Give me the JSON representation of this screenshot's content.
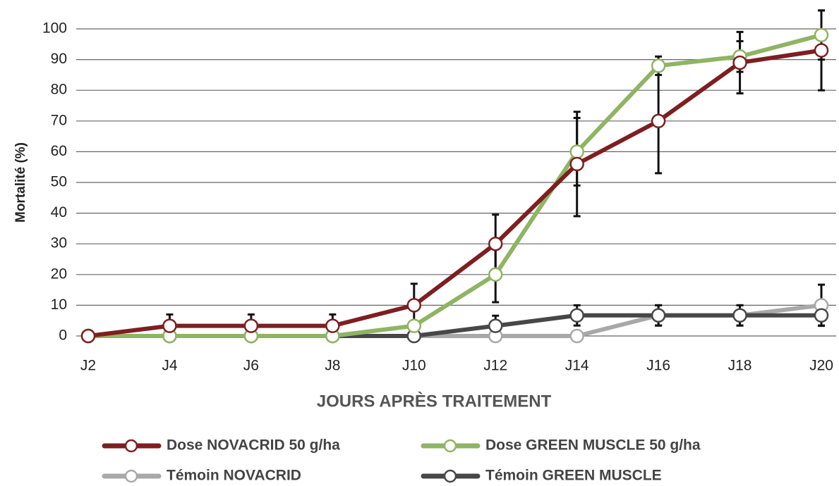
{
  "chart_data": {
    "type": "line",
    "x_label": "JOURS APRÈS TRAITEMENT",
    "y_label": "Mortalité (%)",
    "categories": [
      "J2",
      "J4",
      "J6",
      "J8",
      "J10",
      "J12",
      "J14",
      "J16",
      "J18",
      "J20"
    ],
    "ylim": [
      0,
      100
    ],
    "yticks": [
      0,
      10,
      20,
      30,
      40,
      50,
      60,
      70,
      80,
      90,
      100
    ],
    "grid": true,
    "legend": "bottom",
    "series": [
      {
        "name": "Dose NOVACRID 50 g/ha",
        "color": "#7d1f20",
        "values": [
          0,
          3.3,
          3.3,
          3.3,
          10,
          30,
          56,
          70,
          89,
          93
        ],
        "errors": [
          null,
          3.7,
          3.7,
          3.7,
          7,
          9.5,
          17,
          17,
          10,
          13
        ]
      },
      {
        "name": "Dose GREEN MUSCLE 50 g/ha",
        "color": "#8fb464",
        "values": [
          0,
          0,
          0,
          0,
          3.3,
          20,
          60,
          88,
          91,
          98
        ],
        "errors": [
          null,
          null,
          null,
          null,
          null,
          9,
          11,
          3,
          5,
          8
        ]
      },
      {
        "name": "Témoin NOVACRID",
        "color": "#a8a8a8",
        "values": [
          0,
          0,
          0,
          0,
          0,
          0,
          0,
          6.7,
          6.7,
          10
        ],
        "errors": [
          null,
          null,
          null,
          null,
          null,
          null,
          null,
          3.3,
          3.3,
          6.7
        ]
      },
      {
        "name": "Témoin GREEN MUSCLE",
        "color": "#474747",
        "values": [
          0,
          0,
          0,
          0,
          0,
          3.3,
          6.7,
          6.7,
          6.7,
          6.7
        ],
        "errors": [
          null,
          null,
          null,
          null,
          null,
          3.3,
          3.3,
          3.3,
          3.3,
          3.3
        ]
      }
    ]
  }
}
